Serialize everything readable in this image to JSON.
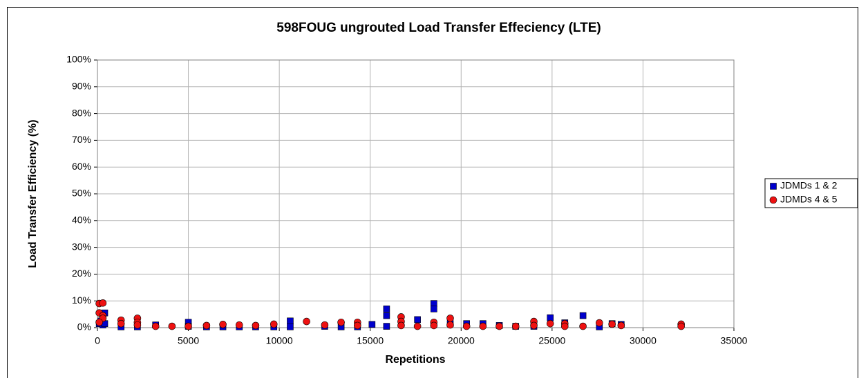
{
  "chart_data": {
    "type": "scatter",
    "title": "598FOUG ungrouted Load Transfer Effeciency (LTE)",
    "xlabel": "Repetitions",
    "ylabel": "Load Transfer Efficiency (%)",
    "xlim": [
      0,
      35000
    ],
    "xticks": [
      0,
      5000,
      10000,
      15000,
      20000,
      25000,
      30000,
      35000
    ],
    "ylim": [
      0,
      100
    ],
    "yticks": [
      {
        "value": 0,
        "label": "0%"
      },
      {
        "value": 10,
        "label": "10%"
      },
      {
        "value": 20,
        "label": "20%"
      },
      {
        "value": 30,
        "label": "30%"
      },
      {
        "value": 40,
        "label": "40%"
      },
      {
        "value": 50,
        "label": "50%"
      },
      {
        "value": 60,
        "label": "60%"
      },
      {
        "value": 70,
        "label": "70%"
      },
      {
        "value": 80,
        "label": "80%"
      },
      {
        "value": 90,
        "label": "90%"
      },
      {
        "value": 100,
        "label": "100%"
      }
    ],
    "grid": true,
    "legend": "right",
    "series": [
      {
        "name": "JDMDs 1 & 2",
        "color": "#0000cc",
        "marker": "square",
        "x": [
          100,
          200,
          300,
          400,
          400,
          1300,
          2200,
          3200,
          5000,
          5000,
          6000,
          6900,
          7800,
          8700,
          9700,
          10600,
          10600,
          12500,
          13400,
          14300,
          15100,
          15900,
          15900,
          15900,
          17600,
          18500,
          18500,
          19400,
          20300,
          21200,
          22100,
          23000,
          24000,
          24900,
          25700,
          26700,
          27600,
          28300,
          28800
        ],
        "values": [
          1.5,
          2.5,
          1.0,
          5.5,
          1.5,
          0.3,
          0.3,
          1.0,
          2.0,
          0.5,
          0.3,
          0.3,
          0.3,
          0.3,
          0.3,
          2.5,
          0.3,
          0.5,
          0.3,
          0.3,
          1.2,
          7.0,
          4.5,
          0.5,
          3.0,
          9.0,
          7.0,
          1.5,
          1.5,
          1.5,
          0.8,
          0.5,
          0.5,
          3.7,
          1.8,
          4.5,
          0.3,
          1.5,
          1.2
        ]
      },
      {
        "name": "JDMDs 4 & 5",
        "color": "#ee1111",
        "marker": "circle",
        "x": [
          100,
          300,
          100,
          300,
          300,
          100,
          1300,
          1300,
          2200,
          2200,
          2200,
          3200,
          4100,
          5000,
          6000,
          6900,
          7800,
          8700,
          9700,
          11500,
          12500,
          13400,
          14300,
          14300,
          16700,
          16700,
          16700,
          17600,
          18500,
          18500,
          19400,
          19400,
          20300,
          21200,
          22100,
          23000,
          24000,
          24000,
          24900,
          25700,
          25700,
          26700,
          27600,
          28300,
          28800,
          32100,
          32100
        ],
        "values": [
          9.0,
          9.2,
          5.5,
          4.5,
          3.5,
          2.0,
          2.8,
          1.5,
          3.5,
          2.0,
          1.0,
          0.5,
          0.5,
          0.5,
          0.8,
          1.2,
          1.0,
          0.8,
          1.3,
          2.3,
          1.0,
          2.0,
          2.0,
          0.8,
          4.0,
          2.3,
          0.8,
          0.5,
          2.0,
          0.8,
          3.5,
          1.0,
          0.5,
          0.5,
          0.5,
          0.5,
          2.3,
          0.8,
          1.5,
          1.5,
          0.5,
          0.5,
          1.8,
          1.3,
          0.8,
          1.3,
          0.5
        ]
      }
    ]
  }
}
